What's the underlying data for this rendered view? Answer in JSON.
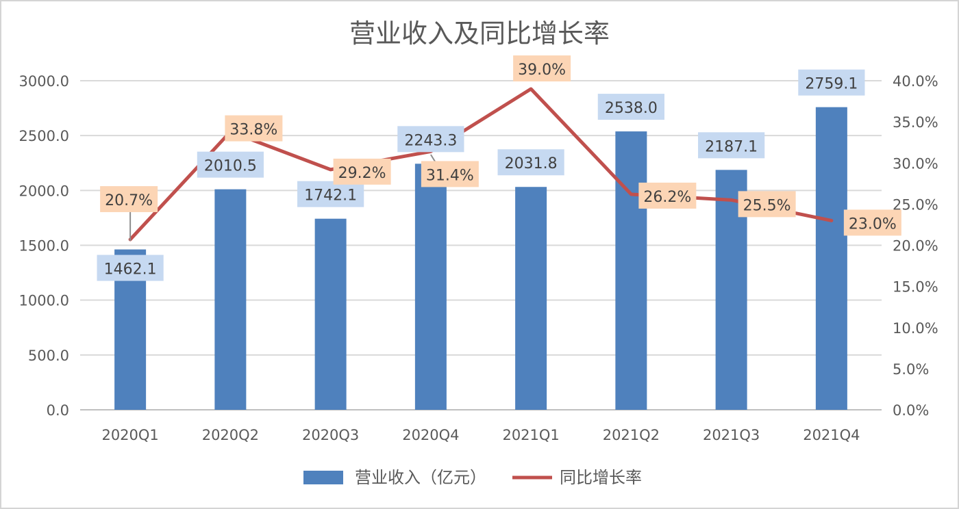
{
  "chart_data": {
    "type": "bar",
    "title": "营业收入及同比增长率",
    "categories": [
      "2020Q1",
      "2020Q2",
      "2020Q3",
      "2020Q4",
      "2021Q1",
      "2021Q2",
      "2021Q3",
      "2021Q4"
    ],
    "series": [
      {
        "name": "营业收入（亿元）",
        "type": "bar",
        "axis": "left",
        "values": [
          1462.1,
          2010.5,
          1742.1,
          2243.3,
          2031.8,
          2538.0,
          2187.1,
          2759.1
        ],
        "labels": [
          "1462.1",
          "2010.5",
          "1742.1",
          "2243.3",
          "2031.8",
          "2538.0",
          "2187.1",
          "2759.1"
        ],
        "color": "#4f81bd",
        "label_bg": "#c6d9f1"
      },
      {
        "name": "同比增长率",
        "type": "line",
        "axis": "right",
        "values": [
          0.207,
          0.338,
          0.292,
          0.314,
          0.39,
          0.262,
          0.255,
          0.23
        ],
        "labels": [
          "20.7%",
          "33.8%",
          "29.2%",
          "31.4%",
          "39.0%",
          "26.2%",
          "25.5%",
          "23.0%"
        ],
        "color": "#c0504d",
        "label_bg": "#fcd5b5"
      }
    ],
    "y_left": {
      "ylim": [
        0,
        3000
      ],
      "ticks": [
        0,
        500,
        1000,
        1500,
        2000,
        2500,
        3000
      ],
      "tick_labels": [
        "0.0",
        "500.0",
        "1000.0",
        "1500.0",
        "2000.0",
        "2500.0",
        "3000.0"
      ]
    },
    "y_right": {
      "ylim": [
        0,
        0.4
      ],
      "ticks": [
        0,
        0.05,
        0.1,
        0.15,
        0.2,
        0.25,
        0.3,
        0.35,
        0.4
      ],
      "tick_labels": [
        "0.0%",
        "5.0%",
        "10.0%",
        "15.0%",
        "20.0%",
        "25.0%",
        "30.0%",
        "35.0%",
        "40.0%"
      ]
    },
    "grid": true,
    "legend": "bottom",
    "gridline_color": "#d9d9d9",
    "axis_line_color": "#bfbfbf"
  }
}
